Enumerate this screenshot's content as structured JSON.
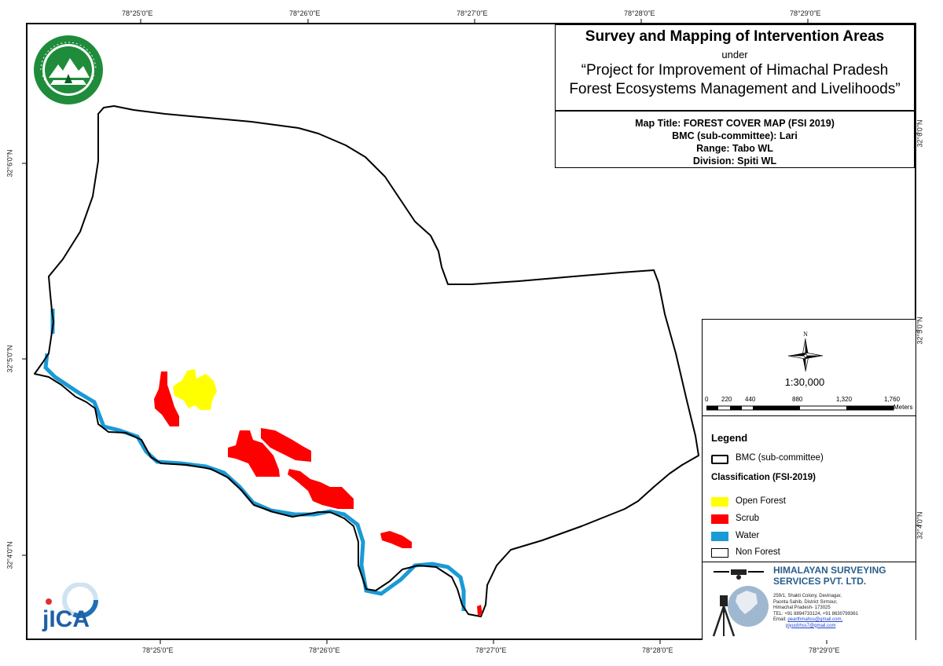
{
  "title_block": {
    "title": "Survey and Mapping of Intervention Areas",
    "under": "under",
    "project_line1": "“Project for Improvement of Himachal Pradesh",
    "project_line2": "Forest Ecosystems Management and Livelihoods”"
  },
  "map_info": {
    "map_title": "Map Title: FOREST COVER MAP (FSI 2019)",
    "bmc": "BMC (sub-committee): Lari",
    "range": "Range: Tabo WL",
    "division": "Division: Spiti WL"
  },
  "graticule": {
    "top": [
      "78°25'0\"E",
      "78°26'0\"E",
      "78°27'0\"E",
      "78°28'0\"E",
      "78°29'0\"E"
    ],
    "bottom": [
      "78°25'0\"E",
      "78°26'0\"E",
      "78°27'0\"E",
      "78°28'0\"E",
      "78°29'0\"E"
    ],
    "left": [
      "32°6'0\"N",
      "32°5'0\"N",
      "32°4'0\"N"
    ],
    "right": [
      "32°6'0\"N",
      "32°5'0\"N",
      "32°4'0\"N"
    ]
  },
  "north_arrow": {
    "label": "N"
  },
  "scale": {
    "ratio": "1:30,000",
    "ticks": [
      "0",
      "220",
      "440",
      "880",
      "1,320",
      "1,760"
    ],
    "unit": "Meters"
  },
  "legend": {
    "title": "Legend",
    "bmc_label": "BMC (sub-committee)",
    "classification_title": "Classification (FSI-2019)",
    "items": [
      {
        "label": "Open Forest",
        "color": "#ffff00"
      },
      {
        "label": "Scrub",
        "color": "#ff0000"
      },
      {
        "label": "Water",
        "color": "#1a9ad6"
      },
      {
        "label": "Non Forest",
        "color": "#ffffff"
      }
    ]
  },
  "company": {
    "name_line1": "HIMALAYAN SURVEYING",
    "name_line2": "SERVICES PVT. LTD.",
    "address": [
      "259/1, Shakti Colony, Devinagar,",
      "Paonta Sahib, District Sirmour,",
      "Himachal Pradesh- 173025",
      "TEL: +91 8894733124, +91 8630799361"
    ],
    "email_label": "Email:",
    "email1": "pearthmahss@gmail.com,",
    "email2": "piyushhss7@gmail.com"
  },
  "logos": {
    "jica": "JICA",
    "hp_forest": "hp-forest-department-emblem"
  }
}
